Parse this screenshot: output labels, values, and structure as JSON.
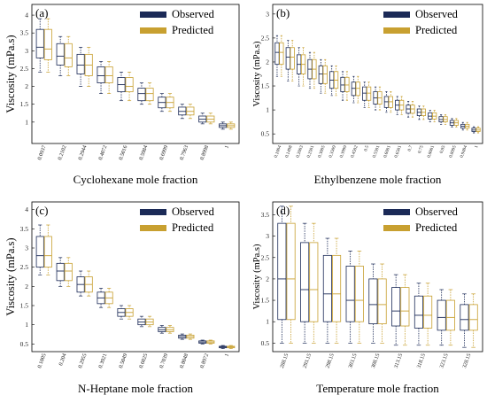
{
  "colors": {
    "observed": "#1b2a57",
    "predicted": "#c8a030",
    "whisker": "#555555",
    "box_stroke": "#7a8aa8",
    "frame": "#000000"
  },
  "chart_data": [
    {
      "type": "box",
      "panel_label": "(a)",
      "xlabel": "Cyclohexane mole fraction",
      "ylabel": "Viscosity (mPa.s)",
      "yticks": [
        1,
        1.5,
        2,
        2.5,
        3,
        3.5,
        4
      ],
      "ylim": [
        0.4,
        4.3
      ],
      "legend": [
        "Observed",
        "Predicted"
      ],
      "legend_position": "top-right",
      "categories": [
        "0.0937",
        "0.2102",
        "0.2944",
        "0.4072",
        "0.5016",
        "0.5984",
        "0.6999",
        "0.7963",
        "0.8998",
        "1"
      ],
      "series": [
        {
          "name": "Observed",
          "boxes": [
            {
              "min": 2.4,
              "q1": 2.8,
              "median": 3.1,
              "q3": 3.6,
              "max": 3.9
            },
            {
              "min": 2.3,
              "q1": 2.6,
              "median": 2.85,
              "q3": 3.2,
              "max": 3.4
            },
            {
              "min": 2.0,
              "q1": 2.35,
              "median": 2.6,
              "q3": 2.9,
              "max": 3.1
            },
            {
              "min": 1.8,
              "q1": 2.1,
              "median": 2.3,
              "q3": 2.55,
              "max": 2.7
            },
            {
              "min": 1.6,
              "q1": 1.85,
              "median": 2.05,
              "q3": 2.25,
              "max": 2.4
            },
            {
              "min": 1.5,
              "q1": 1.6,
              "median": 1.8,
              "q3": 1.95,
              "max": 2.1
            },
            {
              "min": 1.3,
              "q1": 1.4,
              "median": 1.55,
              "q3": 1.7,
              "max": 1.8
            },
            {
              "min": 1.1,
              "q1": 1.2,
              "median": 1.3,
              "q3": 1.42,
              "max": 1.5
            },
            {
              "min": 0.95,
              "q1": 1.0,
              "median": 1.08,
              "q3": 1.17,
              "max": 1.25
            },
            {
              "min": 0.8,
              "q1": 0.85,
              "median": 0.9,
              "q3": 0.95,
              "max": 1.0
            }
          ]
        },
        {
          "name": "Predicted",
          "boxes": [
            {
              "min": 2.4,
              "q1": 2.75,
              "median": 3.05,
              "q3": 3.6,
              "max": 3.9
            },
            {
              "min": 2.3,
              "q1": 2.55,
              "median": 2.8,
              "q3": 3.2,
              "max": 3.4
            },
            {
              "min": 2.0,
              "q1": 2.3,
              "median": 2.6,
              "q3": 2.9,
              "max": 3.1
            },
            {
              "min": 1.8,
              "q1": 2.1,
              "median": 2.3,
              "q3": 2.55,
              "max": 2.7
            },
            {
              "min": 1.6,
              "q1": 1.85,
              "median": 2.0,
              "q3": 2.25,
              "max": 2.4
            },
            {
              "min": 1.5,
              "q1": 1.6,
              "median": 1.8,
              "q3": 1.95,
              "max": 2.1
            },
            {
              "min": 1.3,
              "q1": 1.4,
              "median": 1.55,
              "q3": 1.7,
              "max": 1.8
            },
            {
              "min": 1.1,
              "q1": 1.2,
              "median": 1.3,
              "q3": 1.42,
              "max": 1.5
            },
            {
              "min": 0.95,
              "q1": 1.0,
              "median": 1.08,
              "q3": 1.17,
              "max": 1.25
            },
            {
              "min": 0.8,
              "q1": 0.85,
              "median": 0.9,
              "q3": 0.95,
              "max": 1.0
            }
          ]
        }
      ]
    },
    {
      "type": "box",
      "panel_label": "(b)",
      "xlabel": "Ethylbenzene mole fraction",
      "ylabel": "Viscosity (mPa.s)",
      "yticks": [
        0.5,
        1,
        1.5,
        2,
        2.5,
        3
      ],
      "ylim": [
        0.3,
        3.2
      ],
      "legend": [
        "Observed",
        "Predicted"
      ],
      "legend_position": "top-right",
      "categories": [
        "0.1004",
        "0.1498",
        "0.2003",
        "0.2501",
        "0.3005",
        "0.3509",
        "0.3999",
        "0.4502",
        "0.5",
        "0.5501",
        "0.6001",
        "0.6501",
        "0.7",
        "0.75",
        "0.8001",
        "0.85",
        "0.8995",
        "0.9494",
        "1"
      ],
      "series": [
        {
          "name": "Observed",
          "boxes": [
            {
              "min": 1.7,
              "q1": 1.95,
              "median": 2.2,
              "q3": 2.4,
              "max": 2.55
            },
            {
              "min": 1.6,
              "q1": 1.85,
              "median": 2.1,
              "q3": 2.3,
              "max": 2.45
            },
            {
              "min": 1.5,
              "q1": 1.75,
              "median": 1.95,
              "q3": 2.15,
              "max": 2.3
            },
            {
              "min": 1.45,
              "q1": 1.65,
              "median": 1.85,
              "q3": 2.05,
              "max": 2.2
            },
            {
              "min": 1.35,
              "q1": 1.55,
              "median": 1.75,
              "q3": 1.92,
              "max": 2.05
            },
            {
              "min": 1.3,
              "q1": 1.45,
              "median": 1.62,
              "q3": 1.8,
              "max": 1.92
            },
            {
              "min": 1.2,
              "q1": 1.38,
              "median": 1.52,
              "q3": 1.68,
              "max": 1.8
            },
            {
              "min": 1.15,
              "q1": 1.3,
              "median": 1.45,
              "q3": 1.58,
              "max": 1.7
            },
            {
              "min": 1.05,
              "q1": 1.2,
              "median": 1.35,
              "q3": 1.48,
              "max": 1.58
            },
            {
              "min": 1.0,
              "q1": 1.12,
              "median": 1.25,
              "q3": 1.38,
              "max": 1.48
            },
            {
              "min": 0.95,
              "q1": 1.05,
              "median": 1.17,
              "q3": 1.28,
              "max": 1.38
            },
            {
              "min": 0.9,
              "q1": 1.0,
              "median": 1.1,
              "q3": 1.2,
              "max": 1.28
            },
            {
              "min": 0.85,
              "q1": 0.93,
              "median": 1.02,
              "q3": 1.1,
              "max": 1.18
            },
            {
              "min": 0.8,
              "q1": 0.88,
              "median": 0.95,
              "q3": 1.02,
              "max": 1.08
            },
            {
              "min": 0.75,
              "q1": 0.81,
              "median": 0.87,
              "q3": 0.94,
              "max": 0.99
            },
            {
              "min": 0.7,
              "q1": 0.75,
              "median": 0.8,
              "q3": 0.86,
              "max": 0.9
            },
            {
              "min": 0.64,
              "q1": 0.68,
              "median": 0.73,
              "q3": 0.78,
              "max": 0.82
            },
            {
              "min": 0.58,
              "q1": 0.62,
              "median": 0.66,
              "q3": 0.7,
              "max": 0.74
            },
            {
              "min": 0.52,
              "q1": 0.55,
              "median": 0.58,
              "q3": 0.62,
              "max": 0.65
            }
          ]
        },
        {
          "name": "Predicted",
          "boxes": [
            {
              "min": 1.7,
              "q1": 1.95,
              "median": 2.2,
              "q3": 2.4,
              "max": 2.55
            },
            {
              "min": 1.6,
              "q1": 1.85,
              "median": 2.1,
              "q3": 2.3,
              "max": 2.45
            },
            {
              "min": 1.5,
              "q1": 1.75,
              "median": 1.95,
              "q3": 2.15,
              "max": 2.3
            },
            {
              "min": 1.45,
              "q1": 1.65,
              "median": 1.85,
              "q3": 2.05,
              "max": 2.2
            },
            {
              "min": 1.35,
              "q1": 1.55,
              "median": 1.75,
              "q3": 1.92,
              "max": 2.05
            },
            {
              "min": 1.3,
              "q1": 1.45,
              "median": 1.62,
              "q3": 1.8,
              "max": 1.92
            },
            {
              "min": 1.2,
              "q1": 1.38,
              "median": 1.52,
              "q3": 1.68,
              "max": 1.8
            },
            {
              "min": 1.15,
              "q1": 1.3,
              "median": 1.45,
              "q3": 1.58,
              "max": 1.7
            },
            {
              "min": 1.05,
              "q1": 1.2,
              "median": 1.35,
              "q3": 1.48,
              "max": 1.58
            },
            {
              "min": 1.0,
              "q1": 1.12,
              "median": 1.25,
              "q3": 1.38,
              "max": 1.48
            },
            {
              "min": 0.95,
              "q1": 1.05,
              "median": 1.17,
              "q3": 1.28,
              "max": 1.38
            },
            {
              "min": 0.9,
              "q1": 1.0,
              "median": 1.1,
              "q3": 1.2,
              "max": 1.28
            },
            {
              "min": 0.85,
              "q1": 0.93,
              "median": 1.02,
              "q3": 1.1,
              "max": 1.18
            },
            {
              "min": 0.8,
              "q1": 0.88,
              "median": 0.95,
              "q3": 1.02,
              "max": 1.08
            },
            {
              "min": 0.75,
              "q1": 0.81,
              "median": 0.87,
              "q3": 0.94,
              "max": 0.99
            },
            {
              "min": 0.7,
              "q1": 0.75,
              "median": 0.8,
              "q3": 0.86,
              "max": 0.9
            },
            {
              "min": 0.64,
              "q1": 0.68,
              "median": 0.73,
              "q3": 0.78,
              "max": 0.82
            },
            {
              "min": 0.58,
              "q1": 0.62,
              "median": 0.66,
              "q3": 0.7,
              "max": 0.74
            },
            {
              "min": 0.52,
              "q1": 0.55,
              "median": 0.58,
              "q3": 0.62,
              "max": 0.65
            }
          ]
        }
      ]
    },
    {
      "type": "box",
      "panel_label": "(c)",
      "xlabel": "N-Heptane mole fraction",
      "ylabel": "Viscosity (mPa.s)",
      "yticks": [
        0.5,
        1,
        1.5,
        2,
        2.5,
        3,
        3.5,
        4
      ],
      "ylim": [
        0.3,
        4.2
      ],
      "legend": [
        "Observed",
        "Predicted"
      ],
      "legend_position": "top-right",
      "categories": [
        "0.1005",
        "0.204",
        "0.2955",
        "0.3921",
        "0.5049",
        "0.6025",
        "0.7039",
        "0.8048",
        "0.8972",
        "1"
      ],
      "series": [
        {
          "name": "Observed",
          "boxes": [
            {
              "min": 2.3,
              "q1": 2.5,
              "median": 2.8,
              "q3": 3.3,
              "max": 3.6
            },
            {
              "min": 2.0,
              "q1": 2.15,
              "median": 2.4,
              "q3": 2.6,
              "max": 2.75
            },
            {
              "min": 1.75,
              "q1": 1.85,
              "median": 2.05,
              "q3": 2.25,
              "max": 2.4
            },
            {
              "min": 1.45,
              "q1": 1.55,
              "median": 1.7,
              "q3": 1.85,
              "max": 1.95
            },
            {
              "min": 1.15,
              "q1": 1.22,
              "median": 1.32,
              "q3": 1.42,
              "max": 1.5
            },
            {
              "min": 0.95,
              "q1": 1.0,
              "median": 1.07,
              "q3": 1.15,
              "max": 1.22
            },
            {
              "min": 0.78,
              "q1": 0.82,
              "median": 0.87,
              "q3": 0.93,
              "max": 0.98
            },
            {
              "min": 0.62,
              "q1": 0.65,
              "median": 0.69,
              "q3": 0.73,
              "max": 0.76
            },
            {
              "min": 0.5,
              "q1": 0.52,
              "median": 0.55,
              "q3": 0.58,
              "max": 0.6
            },
            {
              "min": 0.38,
              "q1": 0.4,
              "median": 0.42,
              "q3": 0.44,
              "max": 0.46
            }
          ]
        },
        {
          "name": "Predicted",
          "boxes": [
            {
              "min": 2.3,
              "q1": 2.5,
              "median": 2.8,
              "q3": 3.3,
              "max": 3.6
            },
            {
              "min": 2.0,
              "q1": 2.15,
              "median": 2.4,
              "q3": 2.6,
              "max": 2.75
            },
            {
              "min": 1.75,
              "q1": 1.85,
              "median": 2.05,
              "q3": 2.25,
              "max": 2.4
            },
            {
              "min": 1.45,
              "q1": 1.55,
              "median": 1.7,
              "q3": 1.85,
              "max": 1.95
            },
            {
              "min": 1.15,
              "q1": 1.22,
              "median": 1.32,
              "q3": 1.42,
              "max": 1.5
            },
            {
              "min": 0.95,
              "q1": 1.0,
              "median": 1.07,
              "q3": 1.15,
              "max": 1.22
            },
            {
              "min": 0.78,
              "q1": 0.82,
              "median": 0.87,
              "q3": 0.93,
              "max": 0.98
            },
            {
              "min": 0.62,
              "q1": 0.65,
              "median": 0.69,
              "q3": 0.73,
              "max": 0.76
            },
            {
              "min": 0.5,
              "q1": 0.52,
              "median": 0.55,
              "q3": 0.58,
              "max": 0.6
            },
            {
              "min": 0.38,
              "q1": 0.4,
              "median": 0.42,
              "q3": 0.44,
              "max": 0.46
            }
          ]
        }
      ]
    },
    {
      "type": "box",
      "panel_label": "(d)",
      "xlabel": "Temperature mole fraction",
      "ylabel": "Viscosity (mPa.s)",
      "yticks": [
        0.5,
        1,
        1.5,
        2,
        2.5,
        3,
        3.5
      ],
      "ylim": [
        0.3,
        3.8
      ],
      "legend": [
        "Observed",
        "Predicted"
      ],
      "legend_position": "top-right",
      "categories": [
        "288.15",
        "293.15",
        "298.15",
        "303.15",
        "308.15",
        "313.15",
        "318.15",
        "323.15",
        "328.15"
      ],
      "series": [
        {
          "name": "Observed",
          "boxes": [
            {
              "min": 0.5,
              "q1": 1.05,
              "median": 2.0,
              "q3": 3.3,
              "max": 3.7
            },
            {
              "min": 0.5,
              "q1": 1.0,
              "median": 1.75,
              "q3": 2.85,
              "max": 3.3
            },
            {
              "min": 0.5,
              "q1": 1.0,
              "median": 1.65,
              "q3": 2.55,
              "max": 2.95
            },
            {
              "min": 0.5,
              "q1": 1.0,
              "median": 1.5,
              "q3": 2.3,
              "max": 2.65
            },
            {
              "min": 0.5,
              "q1": 0.95,
              "median": 1.4,
              "q3": 2.0,
              "max": 2.35
            },
            {
              "min": 0.45,
              "q1": 0.9,
              "median": 1.25,
              "q3": 1.8,
              "max": 2.1
            },
            {
              "min": 0.45,
              "q1": 0.85,
              "median": 1.15,
              "q3": 1.6,
              "max": 1.9
            },
            {
              "min": 0.45,
              "q1": 0.8,
              "median": 1.1,
              "q3": 1.5,
              "max": 1.75
            },
            {
              "min": 0.4,
              "q1": 0.8,
              "median": 1.05,
              "q3": 1.4,
              "max": 1.65
            }
          ]
        },
        {
          "name": "Predicted",
          "boxes": [
            {
              "min": 0.5,
              "q1": 1.05,
              "median": 2.0,
              "q3": 3.3,
              "max": 3.7
            },
            {
              "min": 0.5,
              "q1": 1.0,
              "median": 1.75,
              "q3": 2.85,
              "max": 3.3
            },
            {
              "min": 0.5,
              "q1": 1.0,
              "median": 1.65,
              "q3": 2.55,
              "max": 2.95
            },
            {
              "min": 0.5,
              "q1": 1.0,
              "median": 1.5,
              "q3": 2.3,
              "max": 2.65
            },
            {
              "min": 0.5,
              "q1": 0.95,
              "median": 1.4,
              "q3": 2.0,
              "max": 2.35
            },
            {
              "min": 0.45,
              "q1": 0.9,
              "median": 1.25,
              "q3": 1.8,
              "max": 2.1
            },
            {
              "min": 0.45,
              "q1": 0.85,
              "median": 1.15,
              "q3": 1.6,
              "max": 1.9
            },
            {
              "min": 0.45,
              "q1": 0.8,
              "median": 1.1,
              "q3": 1.5,
              "max": 1.75
            },
            {
              "min": 0.4,
              "q1": 0.8,
              "median": 1.05,
              "q3": 1.4,
              "max": 1.65
            }
          ]
        }
      ]
    }
  ]
}
